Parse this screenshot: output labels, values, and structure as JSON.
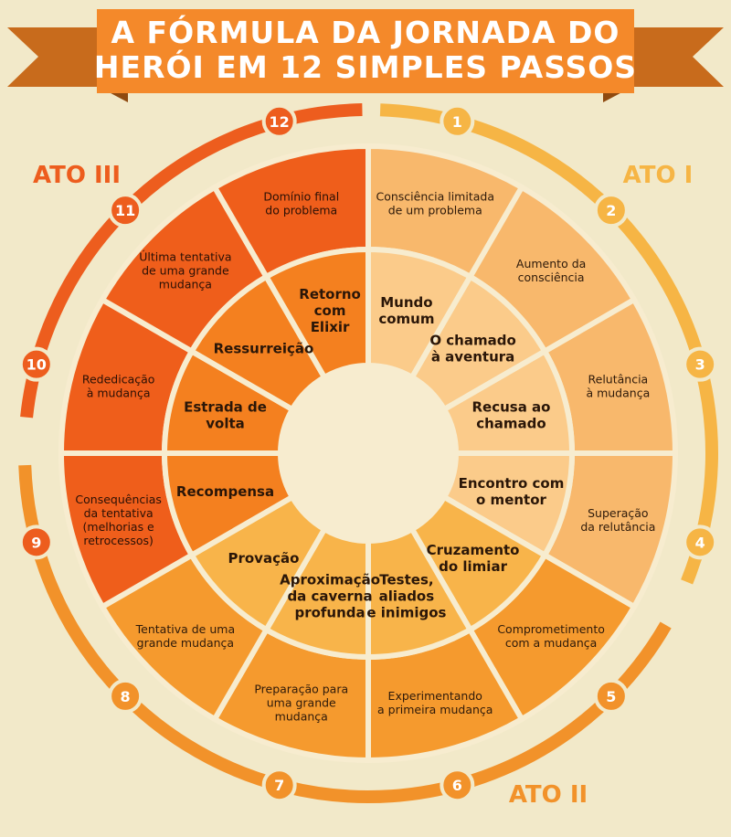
{
  "title": {
    "line1": "A FÓRMULA DA JORNADA DO",
    "line2": "HERÓI EM 12 SIMPLES PASSOS"
  },
  "acts": {
    "act1": "ATO I",
    "act2": "ATO II",
    "act3": "ATO III"
  },
  "colors": {
    "background": "#f2e9c9",
    "title_bg": "#f4892a",
    "ribbon": "#c86b1c",
    "act1": "#f6b545",
    "act2": "#f2922a",
    "act3": "#ed5d1e"
  },
  "steps": [
    {
      "number": "1",
      "inner": [
        "Mundo",
        "comum"
      ],
      "outer": [
        "Consciência limitada",
        "de um problema"
      ]
    },
    {
      "number": "2",
      "inner": [
        "O chamado",
        "à aventura"
      ],
      "outer": [
        "Aumento da",
        "consciência"
      ]
    },
    {
      "number": "3",
      "inner": [
        "Recusa ao",
        "chamado"
      ],
      "outer": [
        "Relutância",
        "à mudança"
      ]
    },
    {
      "number": "4",
      "inner": [
        "Encontro com",
        "o mentor"
      ],
      "outer": [
        "Superação",
        "da relutância"
      ]
    },
    {
      "number": "5",
      "inner": [
        "Cruzamento",
        "do limiar"
      ],
      "outer": [
        "Comprometimento",
        "com a mudança"
      ]
    },
    {
      "number": "6",
      "inner": [
        "Testes,",
        "aliados",
        "e inimigos"
      ],
      "outer": [
        "Experimentando",
        "a primeira mudança"
      ]
    },
    {
      "number": "7",
      "inner": [
        "Aproximação",
        "da caverna",
        "profunda"
      ],
      "outer": [
        "Preparação para",
        "uma grande",
        "mudança"
      ]
    },
    {
      "number": "8",
      "inner": [
        "Provação"
      ],
      "outer": [
        "Tentativa de uma",
        "grande mudança"
      ]
    },
    {
      "number": "9",
      "inner": [
        "Recompensa"
      ],
      "outer": [
        "Consequências",
        "da tentativa",
        "(melhorias e",
        "retrocessos)"
      ]
    },
    {
      "number": "10",
      "inner": [
        "Estrada de",
        "volta"
      ],
      "outer": [
        "Rededicação",
        "à mudança"
      ]
    },
    {
      "number": "11",
      "inner": [
        "Ressurreição"
      ],
      "outer": [
        "Última tentativa",
        "de uma grande",
        "mudança"
      ]
    },
    {
      "number": "12",
      "inner": [
        "Retorno",
        "com",
        "Elixir"
      ],
      "outer": [
        "Domínio final",
        "do problema"
      ]
    }
  ]
}
